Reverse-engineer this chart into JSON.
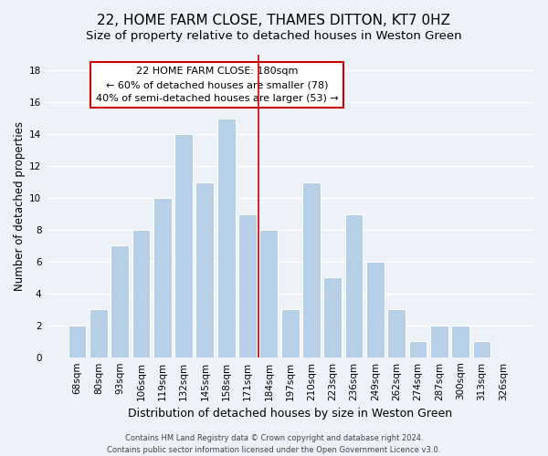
{
  "title": "22, HOME FARM CLOSE, THAMES DITTON, KT7 0HZ",
  "subtitle": "Size of property relative to detached houses in Weston Green",
  "xlabel": "Distribution of detached houses by size in Weston Green",
  "ylabel": "Number of detached properties",
  "footer_line1": "Contains HM Land Registry data © Crown copyright and database right 2024.",
  "footer_line2": "Contains public sector information licensed under the Open Government Licence v3.0.",
  "bin_labels": [
    "68sqm",
    "80sqm",
    "93sqm",
    "106sqm",
    "119sqm",
    "132sqm",
    "145sqm",
    "158sqm",
    "171sqm",
    "184sqm",
    "197sqm",
    "210sqm",
    "223sqm",
    "236sqm",
    "249sqm",
    "262sqm",
    "274sqm",
    "287sqm",
    "300sqm",
    "313sqm",
    "326sqm"
  ],
  "bar_heights": [
    2,
    3,
    7,
    8,
    10,
    14,
    11,
    15,
    9,
    8,
    3,
    11,
    5,
    9,
    6,
    3,
    1,
    2,
    2,
    1,
    0
  ],
  "bar_color": "#b8cfe8",
  "vline_color": "#cc0000",
  "vline_index": 8,
  "annotation_title": "22 HOME FARM CLOSE: 180sqm",
  "annotation_line1": "← 60% of detached houses are smaller (78)",
  "annotation_line2": "40% of semi-detached houses are larger (53) →",
  "annotation_box_facecolor": "#ffffff",
  "annotation_box_edgecolor": "#cc0000",
  "ylim_max": 19,
  "yticks": [
    0,
    2,
    4,
    6,
    8,
    10,
    12,
    14,
    16,
    18
  ],
  "background_color": "#edf2f9",
  "grid_color": "#ffffff",
  "title_fontsize": 11,
  "subtitle_fontsize": 9.5,
  "xlabel_fontsize": 9,
  "ylabel_fontsize": 8.5,
  "tick_fontsize": 7.5,
  "annotation_fontsize": 8,
  "footer_fontsize": 6
}
